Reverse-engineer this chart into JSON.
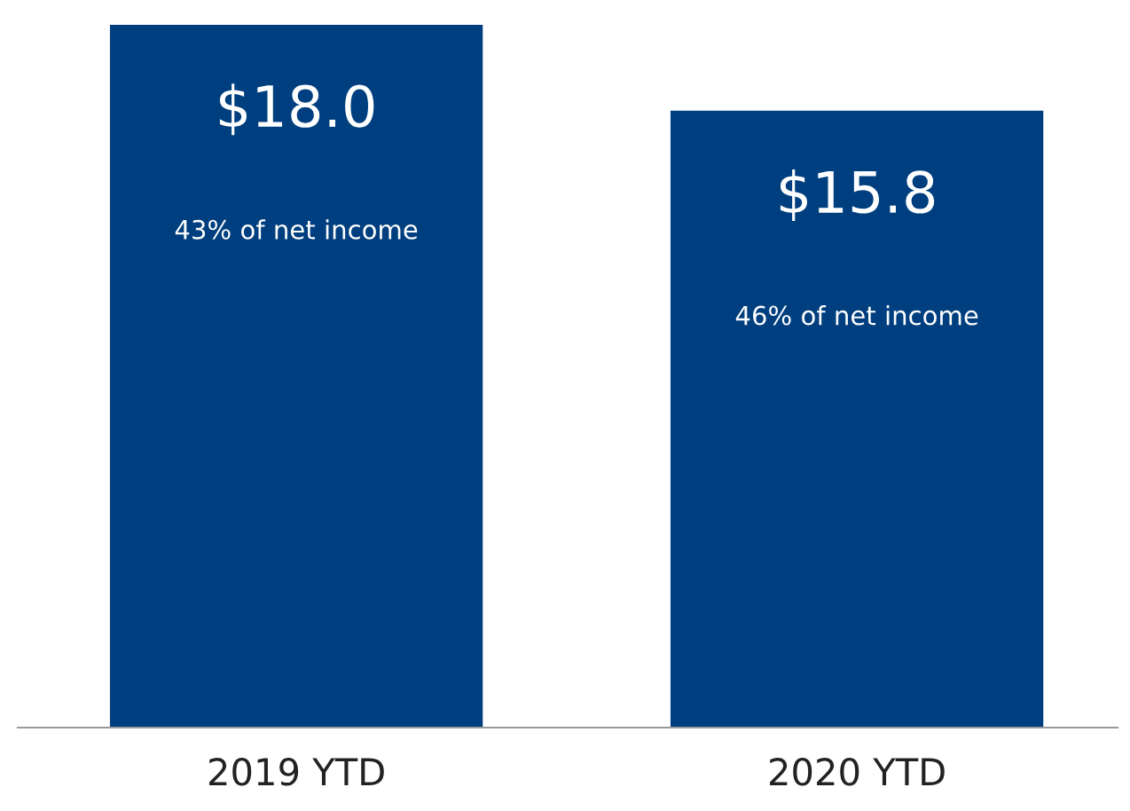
{
  "chart_data": {
    "type": "bar",
    "categories": [
      "2019 YTD",
      "2020 YTD"
    ],
    "values": [
      18.0,
      15.8
    ],
    "color": "#003f7f",
    "value_labels": [
      "$18.0",
      "$15.8"
    ],
    "annotations": [
      "43% of net income",
      "46% of net income"
    ],
    "grid": false,
    "legend": false
  }
}
